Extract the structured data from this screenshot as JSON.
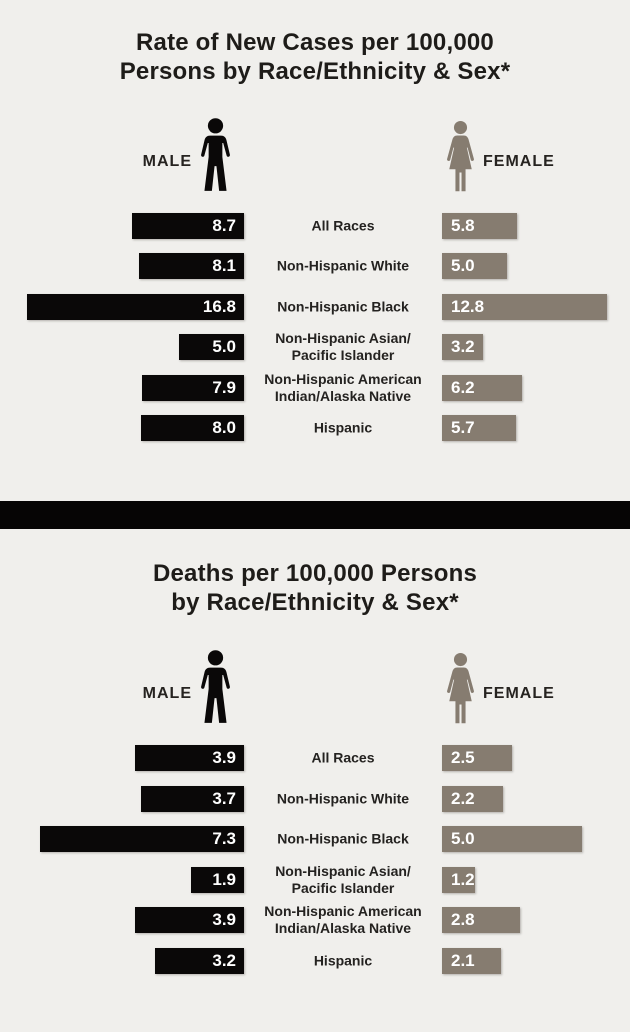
{
  "colors": {
    "background": "#f0efec",
    "male_bar": "#0a0808",
    "female_bar": "#867c70",
    "divider": "#060505",
    "title_text": "#1e1c19",
    "value_text": "#ffffff"
  },
  "charts": [
    {
      "title_lines": [
        "Rate of New Cases per 100,000",
        "Persons by Race/Ethnicity & Sex*"
      ],
      "male_label": "MALE",
      "female_label": "FEMALE",
      "rows": [
        {
          "label_lines": [
            "All Races"
          ],
          "male": "8.7",
          "female": "5.8"
        },
        {
          "label_lines": [
            "Non-Hispanic White"
          ],
          "male": "8.1",
          "female": "5.0"
        },
        {
          "label_lines": [
            "Non-Hispanic Black"
          ],
          "male": "16.8",
          "female": "12.8"
        },
        {
          "label_lines": [
            "Non-Hispanic Asian/",
            "Pacific Islander"
          ],
          "male": "5.0",
          "female": "3.2"
        },
        {
          "label_lines": [
            "Non-Hispanic American",
            "Indian/Alaska Native"
          ],
          "male": "7.9",
          "female": "6.2"
        },
        {
          "label_lines": [
            "Hispanic"
          ],
          "male": "8.0",
          "female": "5.7"
        }
      ]
    },
    {
      "title_lines": [
        "Deaths per 100,000 Persons",
        "by Race/Ethnicity & Sex*"
      ],
      "male_label": "MALE",
      "female_label": "FEMALE",
      "rows": [
        {
          "label_lines": [
            "All Races"
          ],
          "male": "3.9",
          "female": "2.5"
        },
        {
          "label_lines": [
            "Non-Hispanic White"
          ],
          "male": "3.7",
          "female": "2.2"
        },
        {
          "label_lines": [
            "Non-Hispanic Black"
          ],
          "male": "7.3",
          "female": "5.0"
        },
        {
          "label_lines": [
            "Non-Hispanic Asian/",
            "Pacific Islander"
          ],
          "male": "1.9",
          "female": "1.2"
        },
        {
          "label_lines": [
            "Non-Hispanic American",
            "Indian/Alaska Native"
          ],
          "male": "3.9",
          "female": "2.8"
        },
        {
          "label_lines": [
            "Hispanic"
          ],
          "male": "3.2",
          "female": "2.1"
        }
      ]
    }
  ],
  "chart_data": [
    {
      "type": "bar",
      "subtype": "bilateral-tornado",
      "title": "Rate of New Cases per 100,000 Persons by Race/Ethnicity & Sex*",
      "categories": [
        "All Races",
        "Non-Hispanic White",
        "Non-Hispanic Black",
        "Non-Hispanic Asian/Pacific Islander",
        "Non-Hispanic American Indian/Alaska Native",
        "Hispanic"
      ],
      "series": [
        {
          "name": "Male",
          "values": [
            8.7,
            8.1,
            16.8,
            5.0,
            7.9,
            8.0
          ],
          "color": "#0a0808",
          "direction": "left"
        },
        {
          "name": "Female",
          "values": [
            5.8,
            5.0,
            12.8,
            3.2,
            6.2,
            5.7
          ],
          "color": "#867c70",
          "direction": "right"
        }
      ],
      "value_labels": "inside-bars",
      "legend_position": "top",
      "axis": "none",
      "xlim": [
        0,
        16.8
      ]
    },
    {
      "type": "bar",
      "subtype": "bilateral-tornado",
      "title": "Deaths per 100,000 Persons by Race/Ethnicity & Sex*",
      "categories": [
        "All Races",
        "Non-Hispanic White",
        "Non-Hispanic Black",
        "Non-Hispanic Asian/Pacific Islander",
        "Non-Hispanic American Indian/Alaska Native",
        "Hispanic"
      ],
      "series": [
        {
          "name": "Male",
          "values": [
            3.9,
            3.7,
            7.3,
            1.9,
            3.9,
            3.2
          ],
          "color": "#0a0808",
          "direction": "left"
        },
        {
          "name": "Female",
          "values": [
            2.5,
            2.2,
            5.0,
            1.2,
            2.8,
            2.1
          ],
          "color": "#867c70",
          "direction": "right"
        }
      ],
      "value_labels": "inside-bars",
      "legend_position": "top",
      "axis": "none",
      "xlim": [
        0,
        7.3
      ]
    }
  ]
}
